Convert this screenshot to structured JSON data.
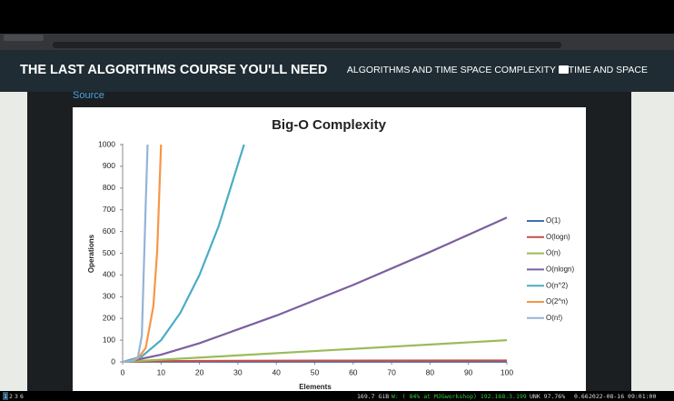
{
  "header": {
    "title": "THE LAST ALGORITHMS COURSE YOU'LL NEED",
    "section": "ALGORITHMS AND TIME SPACE COMPLEXITY",
    "subsection": "TIME AND SPACE"
  },
  "link": "Source",
  "chart_data": {
    "type": "line",
    "title": "Big-O Complexity",
    "x_label": "Elements",
    "y_label": "Operations",
    "xlim": [
      0,
      100
    ],
    "xticks": [
      0,
      10,
      20,
      30,
      40,
      50,
      60,
      70,
      80,
      90,
      100
    ],
    "ylim": [
      0,
      1000
    ],
    "yticks": [
      0,
      100,
      200,
      300,
      400,
      500,
      600,
      700,
      800,
      900,
      1000
    ],
    "grid": false,
    "legend": "right",
    "series": [
      {
        "name": "O(1)",
        "color": "#3f6fb0",
        "x": [
          0,
          100
        ],
        "values": [
          1,
          1
        ]
      },
      {
        "name": "O(logn)",
        "color": "#c0504d",
        "x": [
          1,
          10,
          20,
          50,
          100
        ],
        "values": [
          0,
          3.3,
          4.3,
          5.6,
          6.6
        ]
      },
      {
        "name": "O(n)",
        "color": "#9bbb59",
        "x": [
          0,
          100
        ],
        "values": [
          0,
          100
        ]
      },
      {
        "name": "O(nlogn)",
        "color": "#7b5fa0",
        "x": [
          1,
          10,
          20,
          40,
          60,
          80,
          100
        ],
        "values": [
          0,
          33,
          86,
          213,
          354,
          506,
          664
        ]
      },
      {
        "name": "O(n^2)",
        "color": "#4bacc6",
        "x": [
          0,
          5,
          10,
          15,
          20,
          25,
          31.6
        ],
        "values": [
          0,
          25,
          100,
          225,
          400,
          625,
          1000
        ]
      },
      {
        "name": "O(2^n)",
        "color": "#f79646",
        "x": [
          0,
          2,
          4,
          6,
          8,
          9,
          10
        ],
        "values": [
          1,
          4,
          16,
          64,
          256,
          512,
          1000
        ]
      },
      {
        "name": "O(n!)",
        "color": "#95b3d7",
        "x": [
          0,
          2,
          3,
          4,
          5,
          6,
          6.5
        ],
        "values": [
          1,
          2,
          6,
          24,
          120,
          720,
          1000
        ]
      }
    ]
  },
  "statusbar": {
    "workspaces": [
      "1",
      "2",
      "3",
      "6"
    ],
    "disk": "169.7 GiB",
    "wifi": "W: ( 84% at MJGworkshop) 192.168.3.199",
    "battery": "UNK 97.76%",
    "load": "0.66",
    "clock": "2022-08-16 09:01:00"
  }
}
